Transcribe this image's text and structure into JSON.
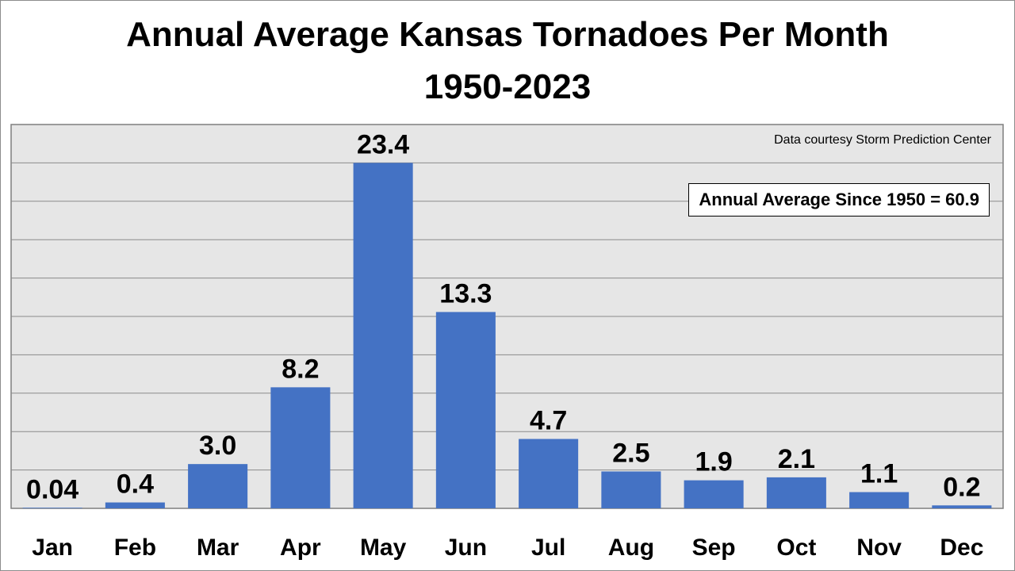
{
  "title": {
    "line1": "Annual Average Kansas Tornadoes Per Month",
    "line2": "1950-2023"
  },
  "annotations": {
    "source": "Data courtesy Storm Prediction Center",
    "annual_average": "Annual Average Since 1950 = 60.9"
  },
  "colors": {
    "bar": "#4472c4",
    "plot_background": "#e6e6e6",
    "gridline": "#8a8a8a"
  },
  "chart_data": {
    "type": "bar",
    "title": "Annual Average Kansas Tornadoes Per Month 1950-2023",
    "xlabel": "",
    "ylabel": "",
    "categories": [
      "Jan",
      "Feb",
      "Mar",
      "Apr",
      "May",
      "Jun",
      "Jul",
      "Aug",
      "Sep",
      "Oct",
      "Nov",
      "Dec"
    ],
    "values": [
      0.04,
      0.4,
      3.0,
      8.2,
      23.4,
      13.3,
      4.7,
      2.5,
      1.9,
      2.1,
      1.1,
      0.2
    ],
    "value_labels": [
      "0.04",
      "0.4",
      "3.0",
      "8.2",
      "23.4",
      "13.3",
      "4.7",
      "2.5",
      "1.9",
      "2.1",
      "1.1",
      "0.2"
    ],
    "ylim": [
      0,
      26
    ],
    "gridline_interval": 2.6,
    "grid": true,
    "legend": "none"
  }
}
